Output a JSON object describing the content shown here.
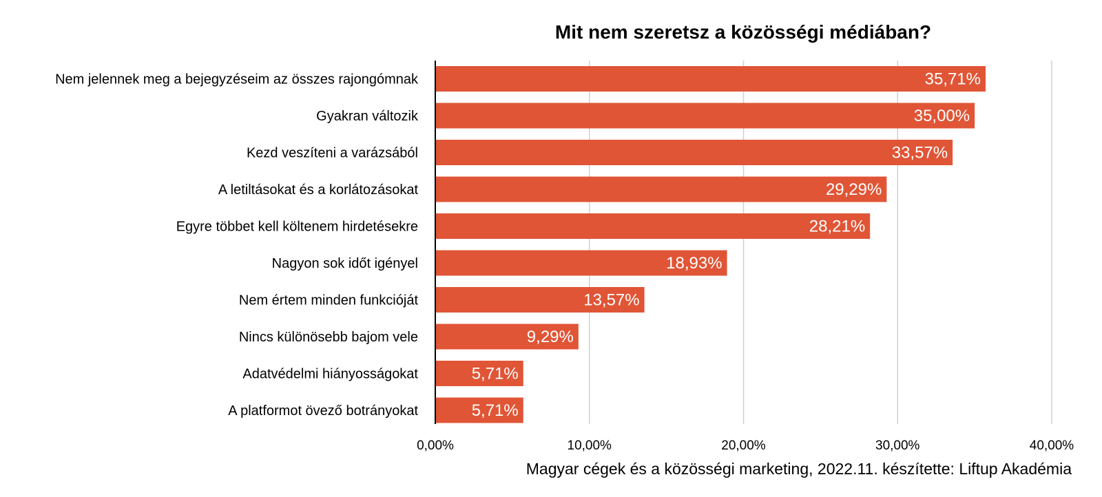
{
  "title": "Mit nem szeretsz a közösségi médiában?",
  "source": "Magyar cégek és a közösségi marketing, 2022.11. készítette:  Liftup Akadémia",
  "colors": {
    "bar": "#E05536",
    "grid": "#D0D0D0"
  },
  "chart_data": {
    "type": "bar",
    "orientation": "horizontal",
    "title": "Mit nem szeretsz a közösségi médiában?",
    "xlabel": "",
    "ylabel": "",
    "xlim": [
      0,
      40
    ],
    "grid": true,
    "categories": [
      "Nem jelennek meg a bejegyzéseim az összes rajongómnak",
      "Gyakran változik",
      "Kezd veszíteni a varázsából",
      "A letiltásokat és a korlátozásokat",
      "Egyre többet kell költenem hirdetésekre",
      "Nagyon sok időt igényel",
      "Nem értem minden funkcióját",
      "Nincs különösebb bajom vele",
      "Adatvédelmi hiányosságokat",
      "A platformot övező botrányokat"
    ],
    "values": [
      35.71,
      35.0,
      33.57,
      29.29,
      28.21,
      18.93,
      13.57,
      9.29,
      5.71,
      5.71
    ],
    "value_labels": [
      "35,71%",
      "35,00%",
      "33,57%",
      "29,29%",
      "28,21%",
      "18,93%",
      "13,57%",
      "9,29%",
      "5,71%",
      "5,71%"
    ],
    "ticks": [
      0,
      10,
      20,
      30,
      40
    ],
    "tick_labels": [
      "0,00%",
      "10,00%",
      "20,00%",
      "30,00%",
      "40,00%"
    ]
  }
}
